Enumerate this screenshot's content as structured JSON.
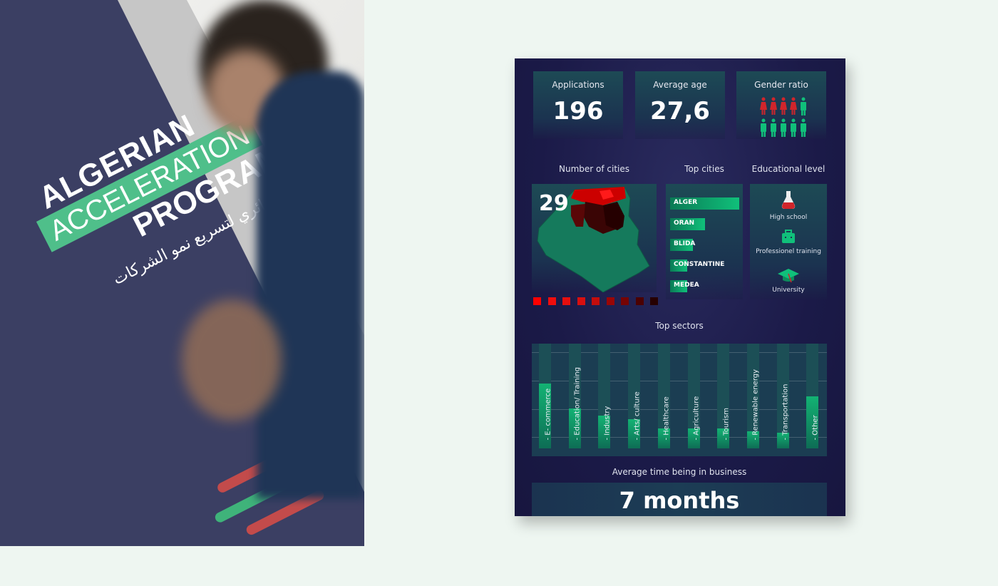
{
  "photo": {
    "title_line1": "ALGERIAN",
    "title_line2": "ACCELERATION",
    "title_line3": "PROGRAM",
    "arabic": "البرنامج الجزائري لتسريع نمو الشركات"
  },
  "colors": {
    "background": "#eef6f1",
    "poster": "#1b1a48",
    "accent_green": "#10c07a",
    "accent_red": "#d0252b"
  },
  "stats": [
    {
      "label": "Applications",
      "value": "196"
    },
    {
      "label": "Average age",
      "value": "27,6"
    },
    {
      "label": "Gender ratio",
      "female": 4,
      "male": 6
    }
  ],
  "sections": {
    "cities_count": "Number of cities",
    "top_cities": "Top cities",
    "education": "Educational level",
    "sectors": "Top sectors",
    "avg_time": "Average time being in business"
  },
  "map": {
    "value": "29",
    "legend_colors": [
      "#ff0000",
      "#f00d0d",
      "#e60f0f",
      "#d80f0f",
      "#c40d0d",
      "#9a0606",
      "#760404",
      "#4b0202",
      "#260000"
    ]
  },
  "top_cities": [
    {
      "name": "ALGER",
      "share": 1.0
    },
    {
      "name": "ORAN",
      "share": 0.5
    },
    {
      "name": "BLIDA",
      "share": 0.33
    },
    {
      "name": "CONSTANTINE",
      "share": 0.25
    },
    {
      "name": "MEDEA",
      "share": 0.25
    }
  ],
  "education": [
    {
      "label": "High school",
      "icon": "flask-icon"
    },
    {
      "label": "Professionel training",
      "icon": "briefcase-icon"
    },
    {
      "label": "University",
      "icon": "graduation-cap-icon"
    }
  ],
  "chart_data": {
    "type": "bar",
    "title": "Top sectors",
    "categories": [
      "- E- commerce",
      "- Education/ Training",
      "- Industry",
      "- Arts/ culture",
      "- Healthcare",
      "- Agriculture",
      "- Tourism",
      "- Renewable energy",
      "- Transportation",
      "- Other"
    ],
    "values": [
      0.62,
      0.38,
      0.31,
      0.28,
      0.19,
      0.19,
      0.19,
      0.16,
      0.15,
      0.5
    ],
    "grid": true
  },
  "avg_time": {
    "value": "7 months"
  }
}
